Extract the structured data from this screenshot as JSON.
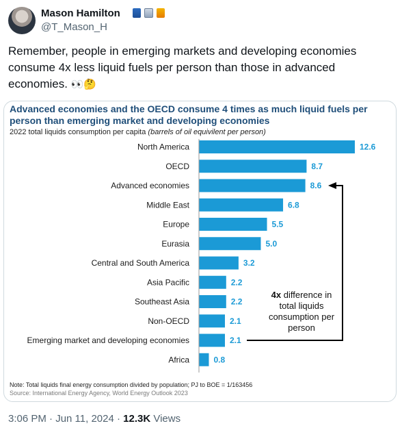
{
  "user": {
    "name": "Mason Hamilton",
    "handle": "@T_Mason_H",
    "name_emojis": [
      "bar-chart-icon",
      "stats-icon",
      "fuel-pump-icon"
    ]
  },
  "tweet": {
    "text": "Remember, people in emerging markets and developing economies consume 4x less liquid fuels per person than those in advanced economies.",
    "emoji": "👀🤔"
  },
  "card": {
    "title": "Advanced economies and the OECD consume 4 times as much liquid fuels per person than emerging market and developing economies",
    "subtitle_plain": "2022 total liquids consumption per capita",
    "subtitle_italic": "(barrels of oil equivilent per person)",
    "annotation_bold": "4x",
    "annotation_rest": "difference in total liquids consumption per person",
    "note": "Note: Total liquids final energy consumption divided by population; PJ to BOE = 1/163456",
    "source": "Source: International Energy Agency, World Energy Outlook 2023"
  },
  "chart_data": {
    "type": "bar",
    "orientation": "horizontal",
    "title": "Advanced economies and the OECD consume 4 times as much liquid fuels per person than emerging market and developing economies",
    "subtitle": "2022 total liquids consumption per capita (barrels of oil equivilent per person)",
    "categories": [
      "North America",
      "OECD",
      "Advanced economies",
      "Middle East",
      "Europe",
      "Eurasia",
      "Central and South America",
      "Asia Pacific",
      "Southeast Asia",
      "Non-OECD",
      "Emerging market and developing economies",
      "Africa"
    ],
    "values": [
      12.6,
      8.7,
      8.6,
      6.8,
      5.5,
      5.0,
      3.2,
      2.2,
      2.2,
      2.1,
      2.1,
      0.8
    ],
    "value_labels": [
      "12.6",
      "8.7",
      "8.6",
      "6.8",
      "5.5",
      "5.0",
      "3.2",
      "2.2",
      "2.2",
      "2.1",
      "2.1",
      "0.8"
    ],
    "xlim": [
      0,
      12.6
    ],
    "grid": false,
    "bar_color": "#1b9ad6",
    "label_color": "#1b9ad6"
  },
  "meta": {
    "time": "3:06 PM · Jun 11, 2024 · ",
    "views_count": "12.3K",
    "views_label": " Views"
  }
}
